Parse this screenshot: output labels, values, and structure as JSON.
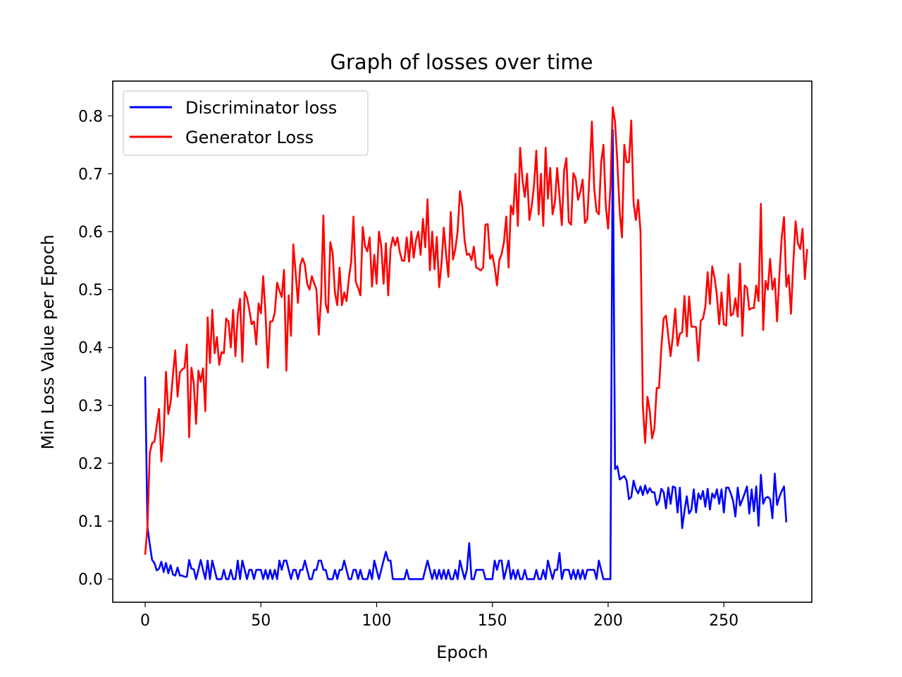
{
  "chart_data": {
    "type": "line",
    "title": "Graph of losses over time",
    "xlabel": "Epoch",
    "ylabel": "Min Loss Value per Epoch",
    "xlim": [
      -14,
      288
    ],
    "ylim": [
      -0.04,
      0.86
    ],
    "xticks": [
      0,
      50,
      100,
      150,
      200,
      250
    ],
    "yticks": [
      0.0,
      0.1,
      0.2,
      0.3,
      0.4,
      0.5,
      0.6,
      0.7,
      0.8
    ],
    "ytick_labels": [
      "0.0",
      "0.1",
      "0.2",
      "0.3",
      "0.4",
      "0.5",
      "0.6",
      "0.7",
      "0.8"
    ],
    "grid": false,
    "legend_position": "top-left",
    "series": [
      {
        "name": "Discriminator loss",
        "color": "#0000ff",
        "values": [
          0.35,
          0.09,
          0.06,
          0.033,
          0.028,
          0.015,
          0.018,
          0.03,
          0.012,
          0.028,
          0.01,
          0.024,
          0.008,
          0.006,
          0.02,
          0.006,
          0.006,
          0.004,
          0.004,
          0.033,
          0.018,
          0.017,
          0.0,
          0.016,
          0.033,
          0.016,
          0.0,
          0.032,
          0.0,
          0.032,
          0.016,
          0.0,
          0.0,
          0.0,
          0.016,
          0.0,
          0.0,
          0.016,
          0.0,
          0.0,
          0.032,
          0.0,
          0.032,
          0.016,
          0.0,
          0.016,
          0.016,
          0.0,
          0.016,
          0.016,
          0.016,
          0.0,
          0.016,
          0.0,
          0.016,
          0.0,
          0.016,
          0.0,
          0.032,
          0.016,
          0.032,
          0.032,
          0.016,
          0.0,
          0.016,
          0.016,
          0.0,
          0.016,
          0.016,
          0.032,
          0.016,
          0.0,
          0.0,
          0.016,
          0.016,
          0.032,
          0.032,
          0.016,
          0.016,
          0.0,
          0.0,
          0.0,
          0.016,
          0.0,
          0.016,
          0.016,
          0.032,
          0.016,
          0.0,
          0.0,
          0.016,
          0.016,
          0.0,
          0.016,
          0.0,
          0.0,
          0.0,
          0.016,
          0.0,
          0.032,
          0.016,
          0.0,
          0.016,
          0.032,
          0.047,
          0.032,
          0.032,
          0.0,
          0.0,
          0.0,
          0.0,
          0.0,
          0.0,
          0.016,
          0.0,
          0.0,
          0.0,
          0.0,
          0.0,
          0.0,
          0.0,
          0.016,
          0.032,
          0.016,
          0.0,
          0.016,
          0.0,
          0.016,
          0.0,
          0.016,
          0.0,
          0.016,
          0.0,
          0.0,
          0.016,
          0.0,
          0.032,
          0.016,
          0.0,
          0.016,
          0.062,
          0.0,
          0.0,
          0.016,
          0.016,
          0.016,
          0.016,
          0.0,
          0.0,
          0.0,
          0.0,
          0.032,
          0.016,
          0.032,
          0.032,
          0.0,
          0.016,
          0.032,
          0.0,
          0.016,
          0.0,
          0.016,
          0.0,
          0.0,
          0.016,
          0.0,
          0.0,
          0.0,
          0.0,
          0.016,
          0.0,
          0.0,
          0.016,
          0.0,
          0.032,
          0.016,
          0.0,
          0.016,
          0.016,
          0.045,
          0.0,
          0.016,
          0.016,
          0.016,
          0.0,
          0.016,
          0.0,
          0.016,
          0.0,
          0.016,
          0.0,
          0.016,
          0.016,
          0.016,
          0.016,
          0.0,
          0.032,
          0.016,
          0.0,
          0.0,
          0.0,
          0.0,
          0.776,
          0.19,
          0.195,
          0.172,
          0.175,
          0.178,
          0.17,
          0.138,
          0.142,
          0.17,
          0.155,
          0.148,
          0.16,
          0.145,
          0.162,
          0.148,
          0.157,
          0.15,
          0.15,
          0.128,
          0.135,
          0.156,
          0.15,
          0.122,
          0.158,
          0.13,
          0.16,
          0.158,
          0.115,
          0.158,
          0.088,
          0.118,
          0.143,
          0.113,
          0.12,
          0.155,
          0.115,
          0.148,
          0.138,
          0.152,
          0.125,
          0.156,
          0.12,
          0.148,
          0.14,
          0.155,
          0.13,
          0.155,
          0.115,
          0.158,
          0.158,
          0.148,
          0.135,
          0.108,
          0.158,
          0.127,
          0.137,
          0.148,
          0.16,
          0.113,
          0.155,
          0.117,
          0.16,
          0.092,
          0.18,
          0.13,
          0.14,
          0.142,
          0.138,
          0.105,
          0.182,
          0.128,
          0.142,
          0.152,
          0.16,
          0.098
        ]
      },
      {
        "name": "Generator Loss",
        "color": "#ff0000",
        "values": [
          0.042,
          0.09,
          0.218,
          0.235,
          0.237,
          0.265,
          0.294,
          0.203,
          0.251,
          0.358,
          0.285,
          0.305,
          0.352,
          0.395,
          0.315,
          0.357,
          0.362,
          0.365,
          0.405,
          0.245,
          0.365,
          0.338,
          0.268,
          0.36,
          0.341,
          0.364,
          0.29,
          0.452,
          0.373,
          0.465,
          0.39,
          0.418,
          0.37,
          0.392,
          0.39,
          0.45,
          0.445,
          0.4,
          0.465,
          0.385,
          0.456,
          0.484,
          0.375,
          0.496,
          0.486,
          0.465,
          0.44,
          0.445,
          0.405,
          0.476,
          0.459,
          0.523,
          0.458,
          0.365,
          0.445,
          0.445,
          0.46,
          0.512,
          0.498,
          0.487,
          0.534,
          0.36,
          0.49,
          0.42,
          0.578,
          0.53,
          0.477,
          0.542,
          0.554,
          0.543,
          0.51,
          0.5,
          0.523,
          0.511,
          0.5,
          0.422,
          0.485,
          0.628,
          0.475,
          0.46,
          0.582,
          0.563,
          0.494,
          0.473,
          0.538,
          0.473,
          0.495,
          0.48,
          0.519,
          0.548,
          0.626,
          0.513,
          0.503,
          0.49,
          0.608,
          0.575,
          0.566,
          0.59,
          0.505,
          0.56,
          0.51,
          0.6,
          0.575,
          0.51,
          0.58,
          0.49,
          0.57,
          0.59,
          0.576,
          0.59,
          0.565,
          0.55,
          0.55,
          0.59,
          0.548,
          0.6,
          0.555,
          0.585,
          0.6,
          0.56,
          0.622,
          0.573,
          0.656,
          0.533,
          0.6,
          0.535,
          0.591,
          0.504,
          0.543,
          0.607,
          0.561,
          0.522,
          0.634,
          0.552,
          0.57,
          0.601,
          0.67,
          0.643,
          0.585,
          0.56,
          0.562,
          0.551,
          0.574,
          0.538,
          0.536,
          0.533,
          0.538,
          0.612,
          0.613,
          0.553,
          0.56,
          0.538,
          0.507,
          0.551,
          0.561,
          0.582,
          0.626,
          0.538,
          0.645,
          0.63,
          0.7,
          0.61,
          0.745,
          0.69,
          0.66,
          0.7,
          0.62,
          0.645,
          0.68,
          0.74,
          0.63,
          0.7,
          0.61,
          0.745,
          0.657,
          0.71,
          0.63,
          0.65,
          0.71,
          0.661,
          0.611,
          0.706,
          0.727,
          0.617,
          0.612,
          0.701,
          0.692,
          0.655,
          0.669,
          0.69,
          0.615,
          0.622,
          0.7,
          0.79,
          0.675,
          0.635,
          0.63,
          0.72,
          0.75,
          0.645,
          0.605,
          0.677,
          0.815,
          0.79,
          0.72,
          0.635,
          0.59,
          0.75,
          0.72,
          0.72,
          0.792,
          0.65,
          0.62,
          0.655,
          0.6,
          0.3,
          0.235,
          0.315,
          0.29,
          0.243,
          0.26,
          0.33,
          0.33,
          0.4,
          0.45,
          0.455,
          0.42,
          0.385,
          0.42,
          0.467,
          0.403,
          0.424,
          0.426,
          0.489,
          0.419,
          0.488,
          0.436,
          0.436,
          0.435,
          0.377,
          0.446,
          0.45,
          0.47,
          0.53,
          0.475,
          0.54,
          0.52,
          0.49,
          0.44,
          0.495,
          0.44,
          0.438,
          0.526,
          0.455,
          0.458,
          0.485,
          0.453,
          0.545,
          0.42,
          0.507,
          0.503,
          0.465,
          0.468,
          0.468,
          0.507,
          0.48,
          0.648,
          0.43,
          0.515,
          0.5,
          0.553,
          0.5,
          0.519,
          0.445,
          0.525,
          0.59,
          0.625,
          0.505,
          0.525,
          0.458,
          0.545,
          0.618,
          0.58,
          0.57,
          0.605,
          0.518,
          0.57
        ]
      }
    ]
  }
}
